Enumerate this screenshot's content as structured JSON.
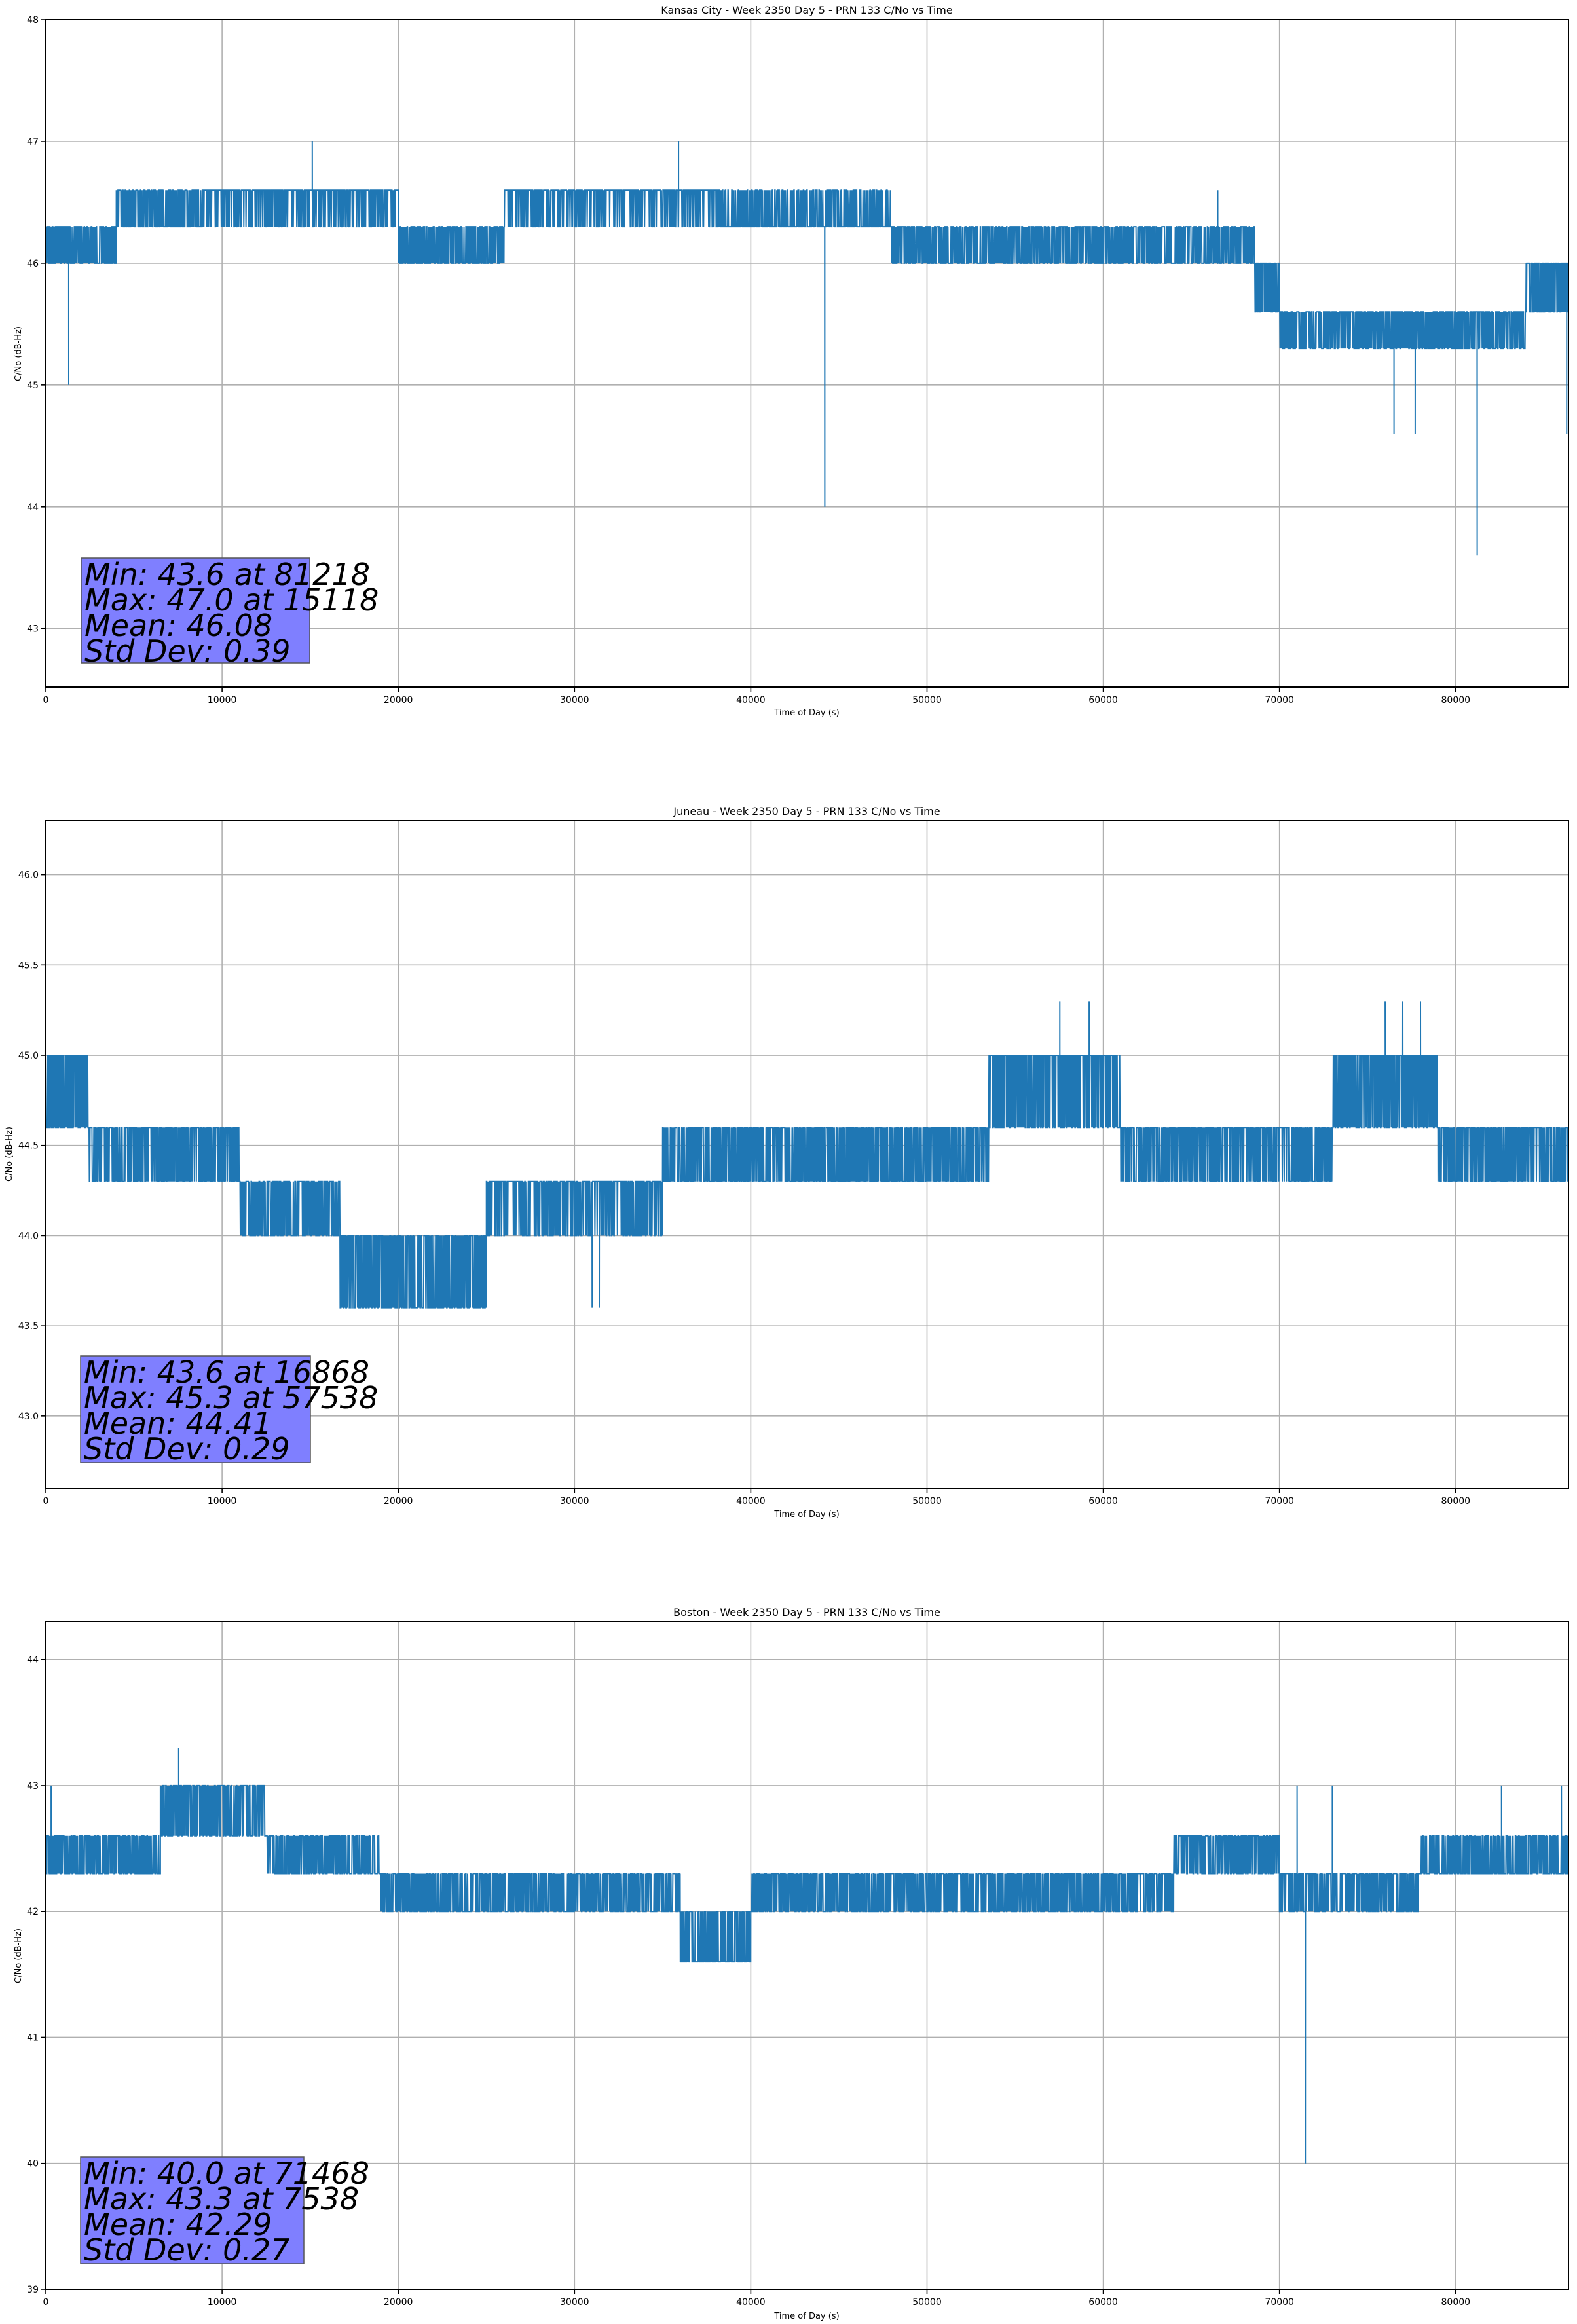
{
  "chart_data": [
    {
      "type": "line",
      "title": "Kansas City - Week 2350 Day 5 - PRN 133 C/No vs Time",
      "xlabel": "Time of Day (s)",
      "ylabel": "C/No (dB-Hz)",
      "xlim": [
        0,
        86400
      ],
      "ylim": [
        42.52,
        48
      ],
      "xticks": [
        0,
        10000,
        20000,
        30000,
        40000,
        50000,
        60000,
        70000,
        80000
      ],
      "yticks": [
        43,
        44,
        45,
        46,
        47,
        48
      ],
      "ytick_labels": [
        "43",
        "44",
        "45",
        "46",
        "47",
        "48"
      ],
      "grid": true,
      "series_color": "#1f77b4",
      "segments": [
        {
          "x": [
            0,
            4000
          ],
          "base": 46.0,
          "alt": 46.3,
          "p": 0.55
        },
        {
          "x": [
            4000,
            9000
          ],
          "base": 46.3,
          "alt": 46.6,
          "p": 0.45
        },
        {
          "x": [
            9000,
            20000
          ],
          "base": 46.6,
          "alt": 46.3,
          "p": 0.25
        },
        {
          "x": [
            20000,
            26000
          ],
          "base": 46.3,
          "alt": 46.0,
          "p": 0.5
        },
        {
          "x": [
            26000,
            38000
          ],
          "base": 46.6,
          "alt": 46.3,
          "p": 0.25
        },
        {
          "x": [
            38000,
            48000
          ],
          "base": 46.3,
          "alt": 46.6,
          "p": 0.35
        },
        {
          "x": [
            48000,
            55000
          ],
          "base": 46.3,
          "alt": 46.0,
          "p": 0.5
        },
        {
          "x": [
            55000,
            68600
          ],
          "base": 46.0,
          "alt": 46.3,
          "p": 0.55
        },
        {
          "x": [
            68600,
            70000
          ],
          "base": 45.6,
          "alt": 46.0,
          "p": 0.5
        },
        {
          "x": [
            70000,
            84000
          ],
          "base": 45.3,
          "alt": 45.6,
          "p": 0.55
        },
        {
          "x": [
            84000,
            86400
          ],
          "base": 45.6,
          "alt": 46.0,
          "p": 0.5
        }
      ],
      "spikes": [
        [
          15118,
          47.0
        ],
        [
          35900,
          47.0
        ],
        [
          44200,
          44.0
        ],
        [
          1300,
          45.0
        ],
        [
          81218,
          43.6
        ],
        [
          76500,
          44.6
        ],
        [
          77700,
          44.6
        ],
        [
          86300,
          44.6
        ],
        [
          66500,
          46.6
        ]
      ],
      "stats": {
        "min": "Min: 43.6 at 81218",
        "max": "Max: 47.0 at 15118",
        "mean": "Mean: 46.08",
        "std": "Std Dev: 0.39"
      }
    },
    {
      "type": "line",
      "title": "Juneau - Week 2350 Day 5 - PRN 133 C/No vs Time",
      "xlabel": "Time of Day (s)",
      "ylabel": "C/No (dB-Hz)",
      "xlim": [
        0,
        86400
      ],
      "ylim": [
        42.6,
        46.3
      ],
      "xticks": [
        0,
        10000,
        20000,
        30000,
        40000,
        50000,
        60000,
        70000,
        80000
      ],
      "yticks": [
        43.0,
        43.5,
        44.0,
        44.5,
        45.0,
        45.5,
        46.0
      ],
      "ytick_labels": [
        "43.0",
        "43.5",
        "44.0",
        "44.5",
        "45.0",
        "45.5",
        "46.0"
      ],
      "grid": true,
      "series_color": "#1f77b4",
      "segments": [
        {
          "x": [
            0,
            2400
          ],
          "base": 44.6,
          "alt": 45.0,
          "p": 0.5
        },
        {
          "x": [
            2400,
            11000
          ],
          "base": 44.3,
          "alt": 44.6,
          "p": 0.6
        },
        {
          "x": [
            11000,
            16700
          ],
          "base": 44.3,
          "alt": 44.0,
          "p": 0.5
        },
        {
          "x": [
            16700,
            25000
          ],
          "base": 43.6,
          "alt": 44.0,
          "p": 0.45
        },
        {
          "x": [
            25000,
            35000
          ],
          "base": 44.3,
          "alt": 44.0,
          "p": 0.35
        },
        {
          "x": [
            35000,
            53500
          ],
          "base": 44.3,
          "alt": 44.6,
          "p": 0.5
        },
        {
          "x": [
            53500,
            61000
          ],
          "base": 44.6,
          "alt": 45.0,
          "p": 0.55
        },
        {
          "x": [
            61000,
            73000
          ],
          "base": 44.3,
          "alt": 44.6,
          "p": 0.6
        },
        {
          "x": [
            73000,
            79000
          ],
          "base": 44.6,
          "alt": 45.0,
          "p": 0.55
        },
        {
          "x": [
            79000,
            86400
          ],
          "base": 44.3,
          "alt": 44.6,
          "p": 0.55
        }
      ],
      "spikes": [
        [
          57538,
          45.3
        ],
        [
          59200,
          45.3
        ],
        [
          76000,
          45.3
        ],
        [
          77000,
          45.3
        ],
        [
          78000,
          45.3
        ],
        [
          31000,
          43.6
        ],
        [
          31400,
          43.6
        ]
      ],
      "stats": {
        "min": "Min: 43.6 at 16868",
        "max": "Max: 45.3 at 57538",
        "mean": "Mean: 44.41",
        "std": "Std Dev: 0.29"
      }
    },
    {
      "type": "line",
      "title": "Boston - Week 2350 Day 5 - PRN 133 C/No vs Time",
      "xlabel": "Time of Day (s)",
      "ylabel": "C/No (dB-Hz)",
      "xlim": [
        0,
        86400
      ],
      "ylim": [
        39,
        44.3
      ],
      "xticks": [
        0,
        10000,
        20000,
        30000,
        40000,
        50000,
        60000,
        70000,
        80000
      ],
      "yticks": [
        39,
        40,
        41,
        42,
        43,
        44
      ],
      "ytick_labels": [
        "39",
        "40",
        "41",
        "42",
        "43",
        "44"
      ],
      "grid": true,
      "series_color": "#1f77b4",
      "segments": [
        {
          "x": [
            0,
            6500
          ],
          "base": 42.3,
          "alt": 42.6,
          "p": 0.5
        },
        {
          "x": [
            6500,
            12500
          ],
          "base": 42.6,
          "alt": 43.0,
          "p": 0.55
        },
        {
          "x": [
            12500,
            19000
          ],
          "base": 42.3,
          "alt": 42.6,
          "p": 0.5
        },
        {
          "x": [
            19000,
            36000
          ],
          "base": 42.0,
          "alt": 42.3,
          "p": 0.45
        },
        {
          "x": [
            36000,
            40000
          ],
          "base": 41.6,
          "alt": 42.0,
          "p": 0.45
        },
        {
          "x": [
            40000,
            58000
          ],
          "base": 42.0,
          "alt": 42.3,
          "p": 0.5
        },
        {
          "x": [
            58000,
            64000
          ],
          "base": 42.0,
          "alt": 42.3,
          "p": 0.6
        },
        {
          "x": [
            64000,
            70000
          ],
          "base": 42.6,
          "alt": 42.3,
          "p": 0.45
        },
        {
          "x": [
            70000,
            78000
          ],
          "base": 42.0,
          "alt": 42.3,
          "p": 0.55
        },
        {
          "x": [
            78000,
            86400
          ],
          "base": 42.3,
          "alt": 42.6,
          "p": 0.4
        }
      ],
      "spikes": [
        [
          7538,
          43.3
        ],
        [
          71468,
          40.0
        ],
        [
          71000,
          43.0
        ],
        [
          73000,
          43.0
        ],
        [
          82600,
          43.0
        ],
        [
          86000,
          43.0
        ],
        [
          300,
          43.0
        ]
      ],
      "stats": {
        "min": "Min: 40.0 at 71468",
        "max": "Max: 43.3 at 7538",
        "mean": "Mean: 42.29",
        "std": "Std Dev: 0.27"
      }
    }
  ]
}
